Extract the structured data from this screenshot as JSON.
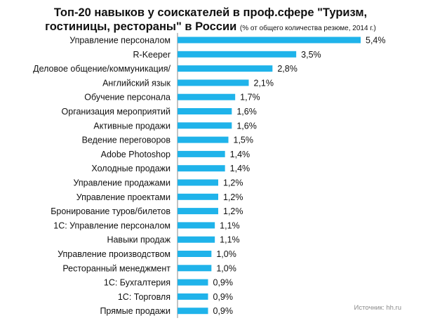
{
  "title_line1": "Топ-20 навыков у соискателей в проф.сфере \"Туризм,",
  "title_line2": "гостиницы, рестораны\" в России",
  "title_note": "(% от общего количества резюме, 2014 г.)",
  "source": "Источник: hh.ru",
  "colors": {
    "bar": "#1fb3ea",
    "axis": "#888888"
  },
  "chart_data": {
    "type": "bar",
    "orientation": "horizontal",
    "title": "Топ-20 навыков у соискателей в проф.сфере \"Туризм, гостиницы, рестораны\" в России (% от общего количества резюме, 2014 г.)",
    "categories": [
      "Управление персоналом",
      "R-Keeper",
      "Деловое общение/коммуникация/",
      "Английский язык",
      "Обучение персонала",
      "Организация мероприятий",
      "Активные продажи",
      "Ведение переговоров",
      "Adobe Photoshop",
      "Холодные продажи",
      "Управление продажами",
      "Управление проектами",
      "Бронирование туров/билетов",
      "1С: Управление персоналом",
      "Навыки продаж",
      "Управление производством",
      "Ресторанный менеджмент",
      "1С: Бухгалтерия",
      "1С: Торговля",
      "Прямые продажи"
    ],
    "values": [
      5.4,
      3.5,
      2.8,
      2.1,
      1.7,
      1.6,
      1.6,
      1.5,
      1.4,
      1.4,
      1.2,
      1.2,
      1.2,
      1.1,
      1.1,
      1.0,
      1.0,
      0.9,
      0.9,
      0.9
    ],
    "value_labels": [
      "5,4%",
      "3,5%",
      "2,8%",
      "2,1%",
      "1,7%",
      "1,6%",
      "1,6%",
      "1,5%",
      "1,4%",
      "1,4%",
      "1,2%",
      "1,2%",
      "1,2%",
      "1,1%",
      "1,1%",
      "1,0%",
      "1,0%",
      "0,9%",
      "0,9%",
      "0,9%"
    ],
    "xlim": [
      0,
      5.4
    ],
    "xlabel": "",
    "ylabel": "",
    "grid": false,
    "legend": false
  }
}
